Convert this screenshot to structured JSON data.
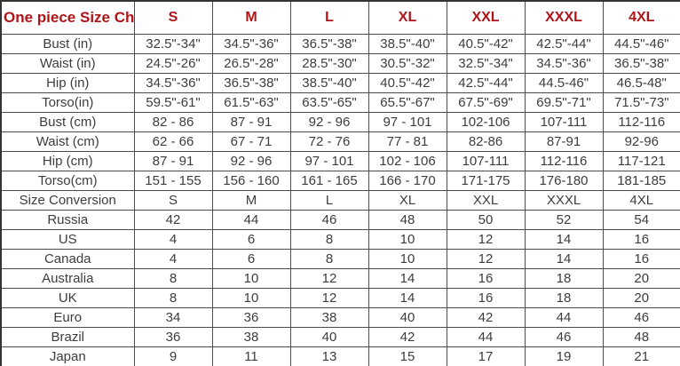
{
  "chart_data": {
    "type": "table",
    "title": "One piece Size Chart",
    "columns": [
      "S",
      "M",
      "L",
      "XL",
      "XXL",
      "XXXL",
      "4XL"
    ],
    "rows": [
      {
        "label": "Bust (in)",
        "values": [
          "32.5\"-34\"",
          "34.5\"-36\"",
          "36.5\"-38\"",
          "38.5\"-40\"",
          "40.5\"-42\"",
          "42.5\"-44\"",
          "44.5\"-46\""
        ]
      },
      {
        "label": "Waist (in)",
        "values": [
          "24.5\"-26\"",
          "26.5\"-28\"",
          "28.5\"-30\"",
          "30.5\"-32\"",
          "32.5\"-34\"",
          "34.5\"-36\"",
          "36.5\"-38\""
        ]
      },
      {
        "label": "Hip (in)",
        "values": [
          "34.5\"-36\"",
          "36.5\"-38\"",
          "38.5\"-40\"",
          "40.5\"-42\"",
          "42.5\"-44\"",
          "44.5-46\"",
          "46.5-48\""
        ]
      },
      {
        "label": "Torso(in)",
        "values": [
          "59.5\"-61\"",
          "61.5\"-63\"",
          "63.5\"-65\"",
          "65.5\"-67\"",
          "67.5\"-69\"",
          "69.5\"-71\"",
          "71.5\"-73\""
        ]
      },
      {
        "label": "Bust (cm)",
        "values": [
          "82 - 86",
          "87 - 91",
          "92 - 96",
          "97 - 101",
          "102-106",
          "107-111",
          "112-116"
        ]
      },
      {
        "label": "Waist (cm)",
        "values": [
          "62 - 66",
          "67 - 71",
          "72 - 76",
          "77 - 81",
          "82-86",
          "87-91",
          "92-96"
        ]
      },
      {
        "label": "Hip (cm)",
        "values": [
          "87 - 91",
          "92 - 96",
          "97 - 101",
          "102 - 106",
          "107-111",
          "112-116",
          "117-121"
        ]
      },
      {
        "label": "Torso(cm)",
        "values": [
          "151 - 155",
          "156 - 160",
          "161 - 165",
          "166 - 170",
          "171-175",
          "176-180",
          "181-185"
        ]
      },
      {
        "label": "Size Conversion",
        "values": [
          "S",
          "M",
          "L",
          "XL",
          "XXL",
          "XXXL",
          "4XL"
        ]
      },
      {
        "label": "Russia",
        "values": [
          "42",
          "44",
          "46",
          "48",
          "50",
          "52",
          "54"
        ]
      },
      {
        "label": "US",
        "values": [
          "4",
          "6",
          "8",
          "10",
          "12",
          "14",
          "16"
        ]
      },
      {
        "label": "Canada",
        "values": [
          "4",
          "6",
          "8",
          "10",
          "12",
          "14",
          "16"
        ]
      },
      {
        "label": "Australia",
        "values": [
          "8",
          "10",
          "12",
          "14",
          "16",
          "18",
          "20"
        ]
      },
      {
        "label": "UK",
        "values": [
          "8",
          "10",
          "12",
          "14",
          "16",
          "18",
          "20"
        ]
      },
      {
        "label": "Euro",
        "values": [
          "34",
          "36",
          "38",
          "40",
          "42",
          "44",
          "46"
        ]
      },
      {
        "label": "Brazil",
        "values": [
          "36",
          "38",
          "40",
          "42",
          "44",
          "46",
          "48"
        ]
      },
      {
        "label": "Japan",
        "values": [
          "9",
          "11",
          "13",
          "15",
          "17",
          "19",
          "21"
        ]
      }
    ],
    "layout": {
      "grid": true,
      "header_row_bold": true,
      "first_column_is_row_labels": true
    }
  },
  "colors": {
    "header_text": "#b01418",
    "body_text": "#3d3d3d",
    "border": "#4c4c4c",
    "background": "#ffffff"
  }
}
